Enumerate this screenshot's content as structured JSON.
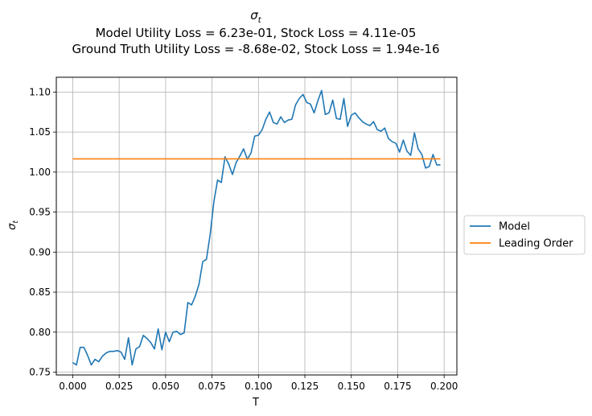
{
  "title": {
    "symbol": "σ",
    "symbol_sub": "t",
    "line2": "Model Utility Loss = 6.23e-01, Stock Loss = 4.11e-05",
    "line3": "Ground Truth Utility Loss = -8.68e-02, Stock Loss = 1.94e-16"
  },
  "chart_data": {
    "type": "line",
    "xlabel": "T",
    "ylabel": "σ",
    "ylabel_sub": "t",
    "xlim": [
      -0.00885,
      0.20685
    ],
    "ylim": [
      0.7465,
      1.1185
    ],
    "xticks": [
      0.0,
      0.025,
      0.05,
      0.075,
      0.1,
      0.125,
      0.15,
      0.175,
      0.2
    ],
    "xtick_labels": [
      "0.000",
      "0.025",
      "0.050",
      "0.075",
      "0.100",
      "0.125",
      "0.150",
      "0.175",
      "0.200"
    ],
    "yticks": [
      0.75,
      0.8,
      0.85,
      0.9,
      0.95,
      1.0,
      1.05,
      1.1
    ],
    "ytick_labels": [
      "0.75",
      "0.80",
      "0.85",
      "0.90",
      "0.95",
      "1.00",
      "1.05",
      "1.10"
    ],
    "grid": true,
    "legend_position": "outside-right",
    "series": [
      {
        "name": "Model",
        "color": "#1f77b4",
        "x": [
          0.0,
          0.002,
          0.004,
          0.006,
          0.008,
          0.01,
          0.012,
          0.014,
          0.016,
          0.018,
          0.02,
          0.022,
          0.024,
          0.026,
          0.028,
          0.03,
          0.032,
          0.034,
          0.036,
          0.038,
          0.04,
          0.042,
          0.044,
          0.046,
          0.048,
          0.05,
          0.052,
          0.054,
          0.056,
          0.058,
          0.06,
          0.062,
          0.064,
          0.066,
          0.068,
          0.07,
          0.072,
          0.074,
          0.076,
          0.078,
          0.08,
          0.082,
          0.084,
          0.086,
          0.088,
          0.09,
          0.092,
          0.094,
          0.096,
          0.098,
          0.1,
          0.102,
          0.104,
          0.106,
          0.108,
          0.11,
          0.112,
          0.114,
          0.116,
          0.118,
          0.12,
          0.122,
          0.124,
          0.126,
          0.128,
          0.13,
          0.132,
          0.134,
          0.136,
          0.138,
          0.14,
          0.142,
          0.144,
          0.146,
          0.148,
          0.15,
          0.152,
          0.154,
          0.156,
          0.158,
          0.16,
          0.162,
          0.164,
          0.166,
          0.168,
          0.17,
          0.172,
          0.174,
          0.176,
          0.178,
          0.18,
          0.182,
          0.184,
          0.186,
          0.188,
          0.19,
          0.192,
          0.194,
          0.196,
          0.198
        ],
        "values": [
          0.762,
          0.759,
          0.781,
          0.781,
          0.771,
          0.759,
          0.766,
          0.763,
          0.77,
          0.774,
          0.776,
          0.776,
          0.777,
          0.775,
          0.766,
          0.793,
          0.759,
          0.779,
          0.782,
          0.796,
          0.792,
          0.787,
          0.779,
          0.804,
          0.778,
          0.8,
          0.788,
          0.8,
          0.801,
          0.797,
          0.799,
          0.837,
          0.834,
          0.845,
          0.86,
          0.888,
          0.891,
          0.922,
          0.963,
          0.99,
          0.987,
          1.019,
          1.01,
          0.997,
          1.012,
          1.02,
          1.029,
          1.016,
          1.024,
          1.045,
          1.046,
          1.053,
          1.066,
          1.075,
          1.062,
          1.06,
          1.069,
          1.062,
          1.065,
          1.066,
          1.084,
          1.092,
          1.097,
          1.087,
          1.085,
          1.074,
          1.089,
          1.102,
          1.072,
          1.074,
          1.09,
          1.067,
          1.066,
          1.092,
          1.057,
          1.071,
          1.074,
          1.068,
          1.063,
          1.06,
          1.058,
          1.063,
          1.053,
          1.051,
          1.055,
          1.042,
          1.038,
          1.036,
          1.025,
          1.04,
          1.026,
          1.021,
          1.049,
          1.029,
          1.022,
          1.005,
          1.007,
          1.022,
          1.009,
          1.009
        ]
      },
      {
        "name": "Leading Order",
        "color": "#ff7f0e",
        "x": [
          0.0,
          0.198
        ],
        "values": [
          1.0165,
          1.0165
        ]
      }
    ]
  }
}
